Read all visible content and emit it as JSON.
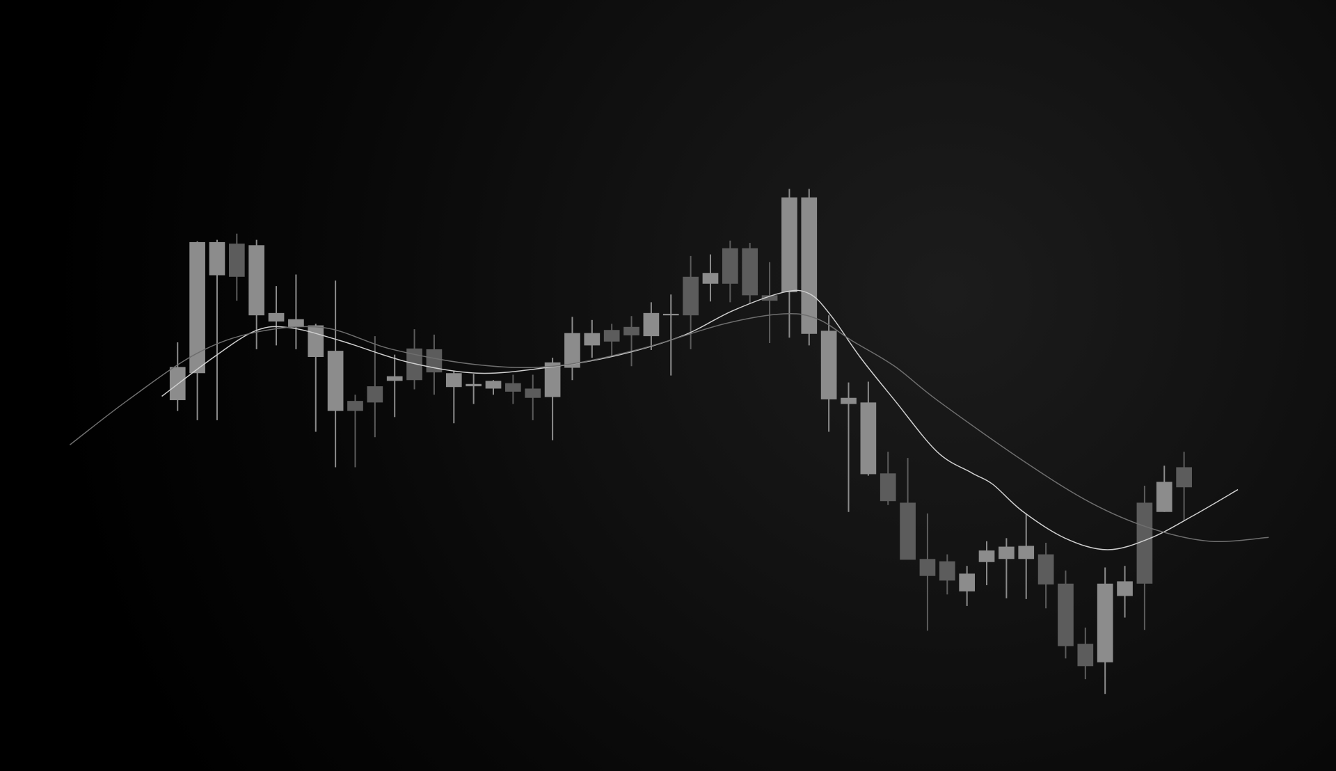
{
  "chart_data": {
    "type": "candlestick",
    "xlim": [
      -8,
      59.7
    ],
    "ylim": [
      0,
      100
    ],
    "up_color": "#8c8c8c",
    "down_color": "#5c5c5c",
    "x": [
      1,
      2,
      3,
      4,
      5,
      6,
      7,
      8,
      9,
      10,
      11,
      12,
      13,
      14,
      15,
      16,
      17,
      18,
      19,
      20,
      21,
      22,
      23,
      24,
      25,
      26,
      27,
      28,
      29,
      30,
      31,
      32,
      33,
      34,
      35,
      36,
      37,
      38,
      39,
      40,
      41,
      42,
      43,
      44,
      45,
      46,
      47,
      48,
      49,
      50,
      51,
      52
    ],
    "open": [
      48.1,
      51.6,
      64.3,
      68.4,
      59.1,
      58.3,
      57.6,
      53.7,
      46.7,
      48.0,
      49.9,
      50.6,
      54.8,
      54.7,
      49.8,
      49.9,
      49.6,
      50.3,
      49.6,
      48.5,
      52.3,
      55.2,
      57.2,
      57.6,
      56.4,
      59.1,
      64.1,
      63.2,
      67.8,
      67.8,
      61.7,
      62.1,
      56.7,
      48.2,
      47.6,
      38.5,
      38.6,
      34.8,
      27.5,
      27.2,
      23.3,
      27.1,
      27.5,
      27.5,
      28.1,
      24.3,
      16.5,
      14.1,
      22.7,
      34.8,
      33.6,
      39.4
    ],
    "high": [
      55.6,
      68.7,
      68.9,
      69.7,
      68.9,
      62.9,
      64.4,
      58.0,
      63.6,
      48.8,
      56.4,
      54.0,
      57.3,
      56.6,
      51.9,
      51.5,
      50.7,
      51.4,
      51.4,
      53.6,
      58.9,
      58.5,
      58.0,
      59.0,
      60.8,
      61.8,
      66.8,
      67.0,
      68.8,
      68.5,
      66.0,
      75.5,
      75.5,
      59.1,
      50.4,
      50.5,
      41.4,
      40.6,
      33.4,
      28.1,
      26.6,
      29.8,
      30.2,
      33.4,
      29.6,
      26.0,
      18.6,
      26.4,
      26.6,
      37.0,
      39.6,
      41.4
    ],
    "low": [
      46.7,
      45.5,
      45.5,
      61.0,
      54.7,
      55.2,
      54.7,
      44.0,
      39.4,
      39.4,
      43.3,
      45.9,
      49.5,
      48.8,
      45.1,
      47.6,
      48.8,
      47.6,
      45.5,
      42.9,
      50.7,
      53.6,
      53.8,
      52.5,
      54.6,
      51.3,
      54.7,
      60.9,
      60.8,
      60.7,
      55.5,
      56.2,
      55.2,
      44.0,
      33.6,
      38.3,
      34.5,
      28.4,
      18.2,
      22.9,
      21.4,
      24.1,
      22.4,
      22.3,
      21.1,
      14.6,
      11.9,
      10.0,
      19.9,
      18.3,
      33.6,
      32.5
    ],
    "close": [
      52.4,
      68.6,
      68.6,
      64.1,
      68.2,
      59.4,
      58.6,
      57.8,
      54.5,
      46.7,
      47.8,
      51.2,
      50.7,
      51.7,
      51.6,
      50.2,
      50.6,
      49.2,
      48.4,
      53.0,
      56.8,
      56.8,
      55.7,
      56.5,
      59.4,
      59.3,
      59.1,
      64.6,
      63.2,
      61.7,
      61.0,
      74.4,
      74.4,
      57.1,
      48.4,
      47.8,
      35.0,
      27.4,
      25.3,
      24.7,
      25.6,
      28.6,
      29.1,
      29.2,
      24.2,
      16.2,
      13.6,
      24.3,
      24.6,
      24.3,
      37.5,
      36.8
    ],
    "lines": [
      {
        "color": "#cfcfcf",
        "x": [
          0.2,
          2.79,
          4.95,
          6.68,
          9.27,
          12.72,
          16.18,
          19.63,
          23.09,
          26.54,
          29.13,
          31.72,
          33.02,
          34.1,
          35.61,
          37.33,
          39.49,
          41.22,
          42.3,
          43.81,
          45.97,
          48.13,
          50.29,
          52.45,
          54.73
        ],
        "values": [
          48.6,
          53.6,
          57.1,
          57.5,
          55.8,
          53.0,
          51.6,
          52.3,
          53.8,
          56.4,
          59.7,
          62.1,
          61.9,
          59.1,
          53.6,
          48.1,
          41.4,
          38.7,
          37.2,
          33.7,
          30.2,
          28.7,
          30.2,
          33.1,
          36.5
        ]
      },
      {
        "color": "#6e6e6e",
        "x": [
          -4.46,
          -1.52,
          1.93,
          4.95,
          8.41,
          11.86,
          16.18,
          20.06,
          24.38,
          28.7,
          31.72,
          33.45,
          35.18,
          37.33,
          39.49,
          43.81,
          47.27,
          50.29,
          53.31,
          56.29
        ],
        "values": [
          42.3,
          48.1,
          54.1,
          56.9,
          57.5,
          54.7,
          52.7,
          52.5,
          54.7,
          58.0,
          59.3,
          58.6,
          55.8,
          52.5,
          48.1,
          40.3,
          34.8,
          31.5,
          29.8,
          30.3
        ]
      }
    ]
  }
}
